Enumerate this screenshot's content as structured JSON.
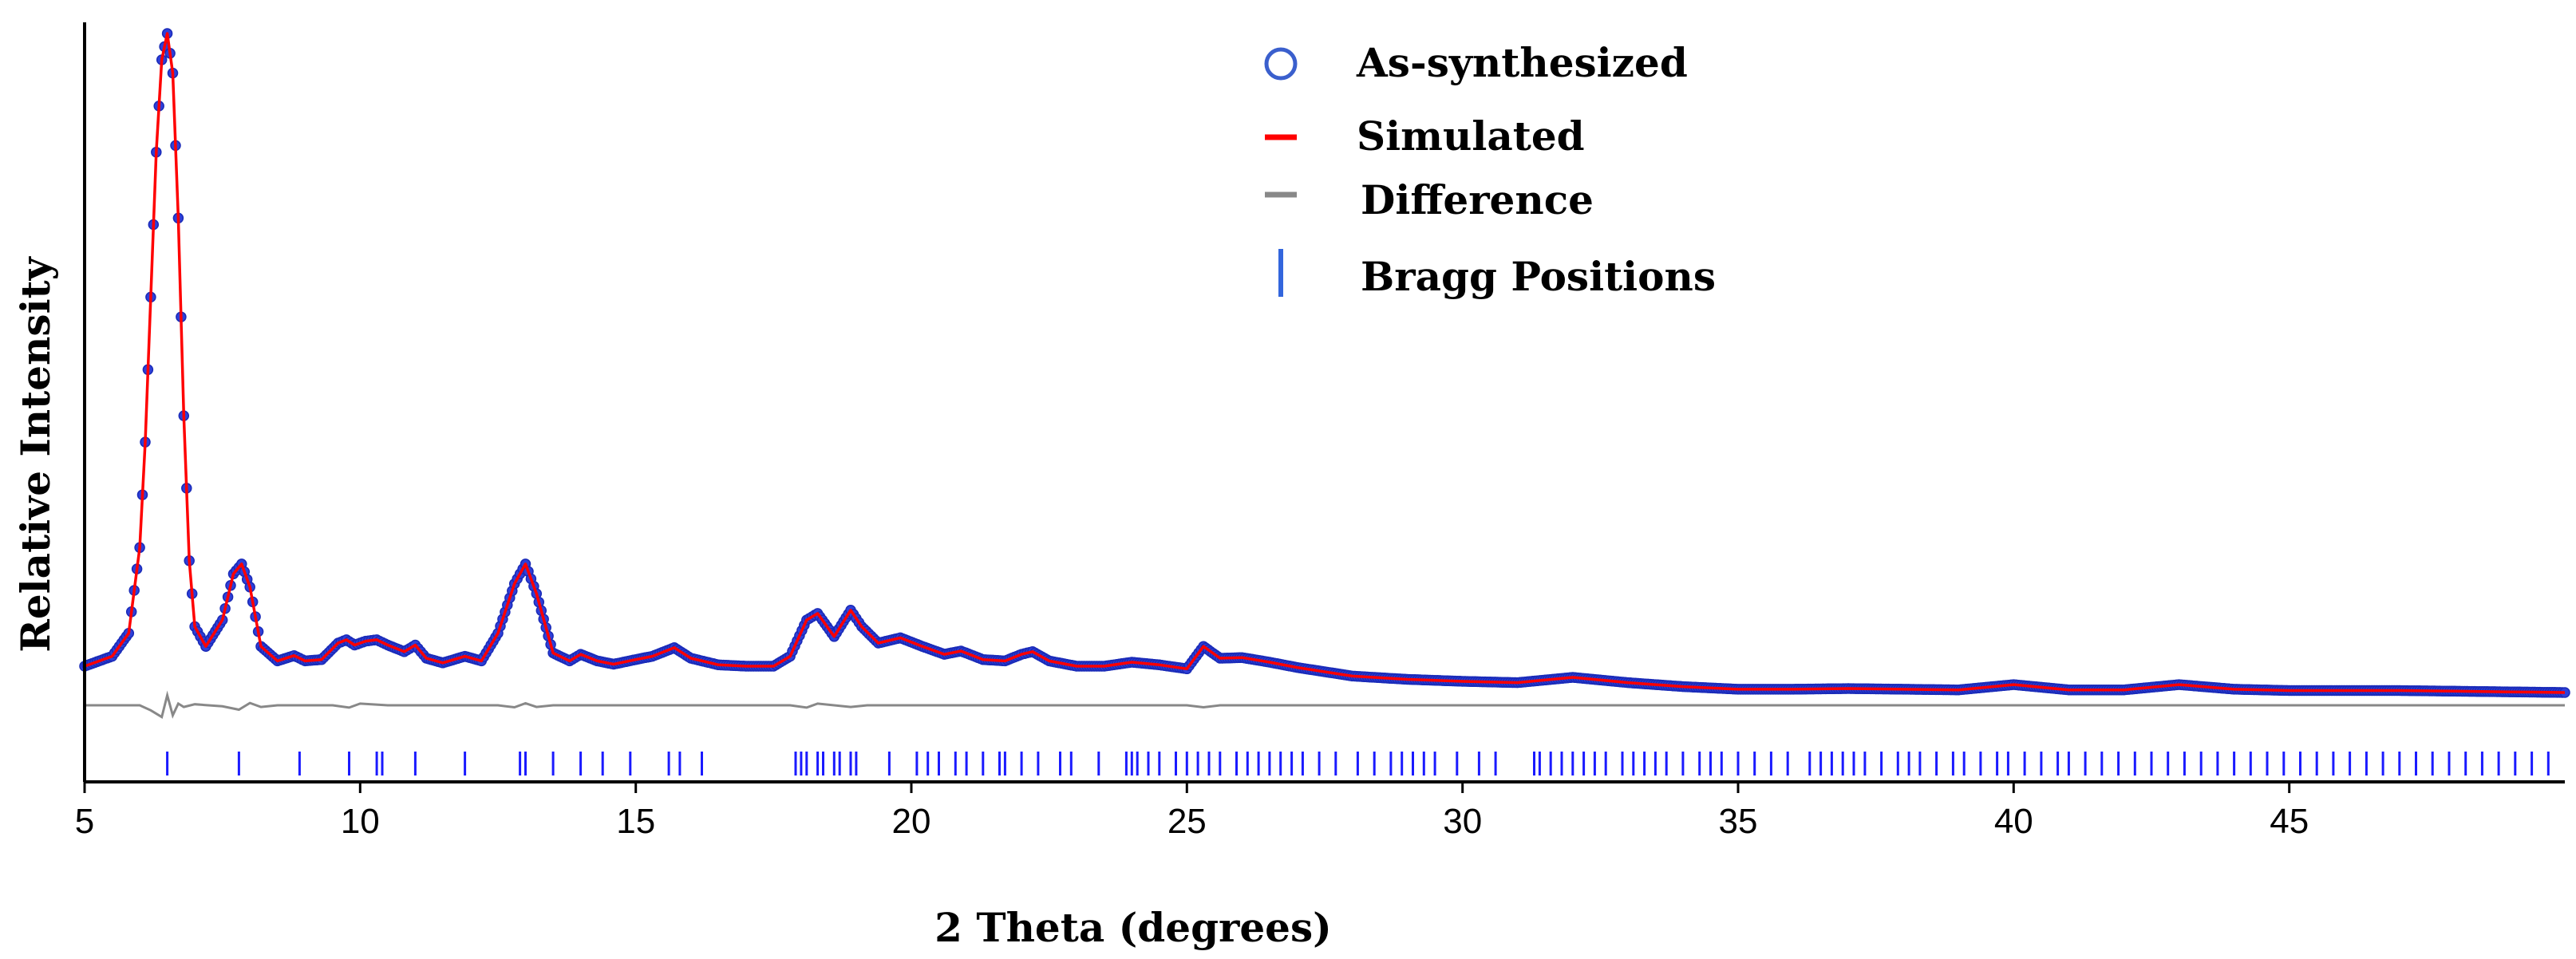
{
  "chart_data": {
    "type": "line",
    "title": "",
    "xlabel": "2 Theta (degrees)",
    "ylabel": "Relative Intensity",
    "xlim": [
      5,
      50
    ],
    "ylim": [
      0,
      100
    ],
    "x_ticks": [
      "5",
      "10",
      "15",
      "20",
      "25",
      "30",
      "35",
      "40",
      "45"
    ],
    "grid": false,
    "legend_position": "top-right",
    "legend": [
      {
        "label": "As-synthesized",
        "marker": "open-circle",
        "color": "#3a5fcd"
      },
      {
        "label": "Simulated",
        "marker": "line",
        "color": "#ff0000"
      },
      {
        "label": "Difference",
        "marker": "line",
        "color": "#888888"
      },
      {
        "label": "Bragg Positions",
        "marker": "vertical-bar",
        "color": "#1a1aff"
      }
    ],
    "series": [
      {
        "name": "As-synthesized",
        "style": "circles",
        "color": "#3a5fcd",
        "x": [
          5.0,
          5.5,
          5.8,
          6.0,
          6.1,
          6.2,
          6.3,
          6.4,
          6.5,
          6.6,
          6.7,
          6.8,
          6.9,
          7.0,
          7.2,
          7.5,
          7.7,
          7.85,
          8.0,
          8.2,
          8.5,
          8.8,
          9.0,
          9.3,
          9.6,
          9.75,
          9.9,
          10.1,
          10.3,
          10.5,
          10.8,
          11.0,
          11.2,
          11.5,
          11.9,
          12.2,
          12.5,
          12.8,
          13.0,
          13.2,
          13.5,
          13.8,
          14.0,
          14.3,
          14.6,
          15.0,
          15.3,
          15.7,
          16.0,
          16.5,
          17.0,
          17.5,
          17.8,
          18.1,
          18.3,
          18.6,
          18.9,
          19.1,
          19.4,
          19.8,
          20.2,
          20.6,
          20.9,
          21.3,
          21.7,
          22.0,
          22.2,
          22.5,
          23.0,
          23.5,
          24.0,
          24.5,
          25.0,
          25.3,
          25.6,
          26.0,
          26.5,
          27.0,
          28.0,
          29.0,
          30.0,
          31.0,
          32.0,
          33.0,
          34.0,
          35.0,
          36.0,
          37.0,
          38.0,
          39.0,
          40.0,
          41.0,
          42.0,
          43.0,
          44.0,
          45.0,
          46.0,
          47.0,
          48.0,
          49.0,
          50.0
        ],
        "y": [
          4.0,
          5.5,
          9.0,
          22.0,
          38.0,
          60.0,
          82.0,
          96.0,
          100.0,
          94.0,
          72.0,
          42.0,
          20.0,
          10.0,
          7.0,
          11.0,
          18.0,
          19.5,
          16.0,
          7.0,
          4.8,
          5.6,
          4.8,
          5.0,
          7.5,
          8.0,
          7.2,
          7.8,
          8.0,
          7.2,
          6.2,
          7.2,
          5.2,
          4.5,
          5.5,
          4.8,
          9.0,
          16.5,
          19.5,
          15.0,
          6.0,
          4.8,
          5.8,
          4.8,
          4.3,
          5.0,
          5.5,
          6.8,
          5.2,
          4.2,
          4.0,
          4.0,
          5.5,
          11.0,
          12.0,
          8.5,
          12.5,
          10.0,
          7.5,
          8.3,
          7.0,
          5.8,
          6.3,
          5.0,
          4.8,
          5.8,
          6.2,
          4.8,
          4.0,
          4.0,
          4.6,
          4.2,
          3.6,
          7.0,
          5.2,
          5.3,
          4.6,
          3.8,
          2.5,
          2.0,
          1.7,
          1.5,
          2.3,
          1.5,
          0.9,
          0.5,
          0.5,
          0.6,
          0.5,
          0.4,
          1.2,
          0.4,
          0.4,
          1.2,
          0.5,
          0.3,
          0.3,
          0.3,
          0.2,
          0.1,
          0.0
        ]
      },
      {
        "name": "Simulated",
        "style": "line",
        "color": "#ff0000",
        "x": [
          5.0,
          5.5,
          5.8,
          6.0,
          6.1,
          6.2,
          6.3,
          6.4,
          6.5,
          6.6,
          6.7,
          6.8,
          6.9,
          7.0,
          7.2,
          7.5,
          7.7,
          7.85,
          8.0,
          8.2,
          8.5,
          8.8,
          9.0,
          9.3,
          9.6,
          9.75,
          9.9,
          10.1,
          10.3,
          10.5,
          10.8,
          11.0,
          11.2,
          11.5,
          11.9,
          12.2,
          12.5,
          12.8,
          13.0,
          13.2,
          13.5,
          13.8,
          14.0,
          14.3,
          14.6,
          15.0,
          15.3,
          15.7,
          16.0,
          16.5,
          17.0,
          17.5,
          17.8,
          18.1,
          18.3,
          18.6,
          18.9,
          19.1,
          19.4,
          19.8,
          20.2,
          20.6,
          20.9,
          21.3,
          21.7,
          22.0,
          22.2,
          22.5,
          23.0,
          23.5,
          24.0,
          24.5,
          25.0,
          25.3,
          25.6,
          26.0,
          26.5,
          27.0,
          28.0,
          29.0,
          30.0,
          31.0,
          32.0,
          33.0,
          34.0,
          35.0,
          36.0,
          37.0,
          38.0,
          39.0,
          40.0,
          41.0,
          42.0,
          43.0,
          44.0,
          45.0,
          46.0,
          47.0,
          48.0,
          49.0,
          50.0
        ],
        "y": [
          4.0,
          5.5,
          9.0,
          22.0,
          38.0,
          60.0,
          82.0,
          96.0,
          100.0,
          94.0,
          72.0,
          42.0,
          20.0,
          10.0,
          7.0,
          11.0,
          18.0,
          19.5,
          16.0,
          7.0,
          4.8,
          5.6,
          4.8,
          5.0,
          7.5,
          8.0,
          7.2,
          7.8,
          8.0,
          7.2,
          6.2,
          7.2,
          5.2,
          4.5,
          5.5,
          4.8,
          9.0,
          16.5,
          19.5,
          15.0,
          6.0,
          4.8,
          5.8,
          4.8,
          4.3,
          5.0,
          5.5,
          6.8,
          5.2,
          4.2,
          4.0,
          4.0,
          5.5,
          11.0,
          12.0,
          8.5,
          12.5,
          10.0,
          7.5,
          8.3,
          7.0,
          5.8,
          6.3,
          5.0,
          4.8,
          5.8,
          6.2,
          4.8,
          4.0,
          4.0,
          4.6,
          4.2,
          3.6,
          7.0,
          5.2,
          5.3,
          4.6,
          3.8,
          2.5,
          2.0,
          1.7,
          1.5,
          2.3,
          1.5,
          0.9,
          0.5,
          0.5,
          0.6,
          0.5,
          0.4,
          1.2,
          0.4,
          0.4,
          1.2,
          0.5,
          0.3,
          0.3,
          0.3,
          0.2,
          0.1,
          0.0
        ]
      },
      {
        "name": "Difference",
        "style": "line",
        "color": "#888888",
        "x": [
          5.0,
          6.0,
          6.2,
          6.4,
          6.5,
          6.6,
          6.7,
          6.8,
          7.0,
          7.5,
          7.8,
          8.0,
          8.2,
          8.5,
          9.5,
          9.8,
          10.0,
          10.5,
          12.5,
          12.8,
          13.0,
          13.2,
          13.5,
          17.8,
          18.1,
          18.3,
          18.9,
          19.2,
          25.0,
          25.3,
          25.6,
          50.0
        ],
        "y": [
          -7.5,
          -7.5,
          -6.0,
          -4.0,
          -10.5,
          -4.5,
          -8.0,
          -7.0,
          -7.8,
          -7.2,
          -6.2,
          -8.2,
          -7.0,
          -7.5,
          -7.5,
          -6.8,
          -8.0,
          -7.5,
          -7.5,
          -6.9,
          -8.1,
          -7.0,
          -7.5,
          -7.5,
          -6.8,
          -8.0,
          -7.0,
          -7.5,
          -7.5,
          -6.9,
          -7.5,
          -7.5
        ]
      }
    ],
    "bragg_positions": [
      6.5,
      7.8,
      8.9,
      9.8,
      10.3,
      10.4,
      11.0,
      11.9,
      12.9,
      13.0,
      13.5,
      14.0,
      14.4,
      14.9,
      15.6,
      15.8,
      16.2,
      17.9,
      18.0,
      18.1,
      18.3,
      18.4,
      18.6,
      18.7,
      18.9,
      19.0,
      19.6,
      20.1,
      20.3,
      20.5,
      20.8,
      21.0,
      21.3,
      21.6,
      21.7,
      22.0,
      22.3,
      22.7,
      22.9,
      23.4,
      23.9,
      24.0,
      24.1,
      24.3,
      24.5,
      24.8,
      25.0,
      25.2,
      25.4,
      25.6,
      25.9,
      26.1,
      26.3,
      26.5,
      26.7,
      26.9,
      27.1,
      27.4,
      27.7,
      28.1,
      28.4,
      28.7,
      28.9,
      29.1,
      29.3,
      29.5,
      29.9,
      30.3,
      30.6,
      31.3,
      31.4,
      31.6,
      31.8,
      32.0,
      32.2,
      32.4,
      32.6,
      32.9,
      33.1,
      33.3,
      33.5,
      33.7,
      34.0,
      34.3,
      34.5,
      34.7,
      35.0,
      35.3,
      35.6,
      35.9,
      36.3,
      36.5,
      36.7,
      36.9,
      37.1,
      37.3,
      37.6,
      37.9,
      38.1,
      38.3,
      38.6,
      38.9,
      39.1,
      39.4,
      39.7,
      39.9,
      40.2,
      40.5,
      40.8,
      41.0,
      41.3,
      41.6,
      41.9,
      42.2,
      42.5,
      42.8,
      43.1,
      43.4,
      43.7,
      44.0,
      44.3,
      44.6,
      44.9,
      45.2,
      45.5,
      45.8,
      46.1,
      46.4,
      46.7,
      47.0,
      47.3,
      47.6,
      47.9,
      48.2,
      48.5,
      48.8,
      49.1,
      49.4,
      49.7
    ]
  }
}
